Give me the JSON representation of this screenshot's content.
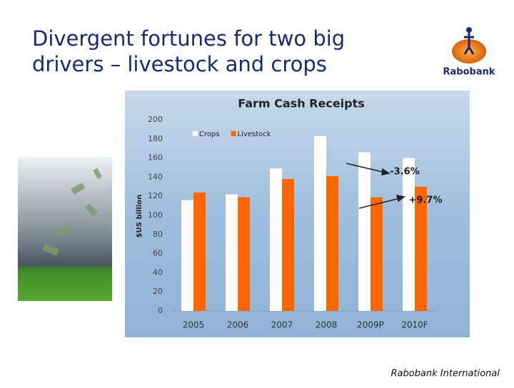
{
  "slide": {
    "title_lines": [
      "Divergent fortunes for two big",
      "drivers – livestock and crops"
    ],
    "logo_text": "Rabobank",
    "footer": "Rabobank International"
  },
  "chart_data": {
    "type": "bar",
    "title": "Farm Cash Receipts",
    "y_label": "$US billion",
    "categories": [
      "2005",
      "2006",
      "2007",
      "2008",
      "2009P",
      "2010F"
    ],
    "series": [
      {
        "name": "Crops",
        "color": "#ffffff",
        "values": [
          116,
          122,
          149,
          183,
          166,
          160
        ]
      },
      {
        "name": "Livestock",
        "color": "#ff6600",
        "values": [
          124,
          119,
          138,
          141,
          119,
          130
        ]
      }
    ],
    "ylim": [
      0,
      200
    ],
    "yticks": [
      0,
      20,
      40,
      60,
      80,
      100,
      120,
      140,
      160,
      180,
      200
    ],
    "grid": false,
    "legend": "top-left",
    "annotations": [
      "-3.6%",
      "+9.7%"
    ]
  }
}
